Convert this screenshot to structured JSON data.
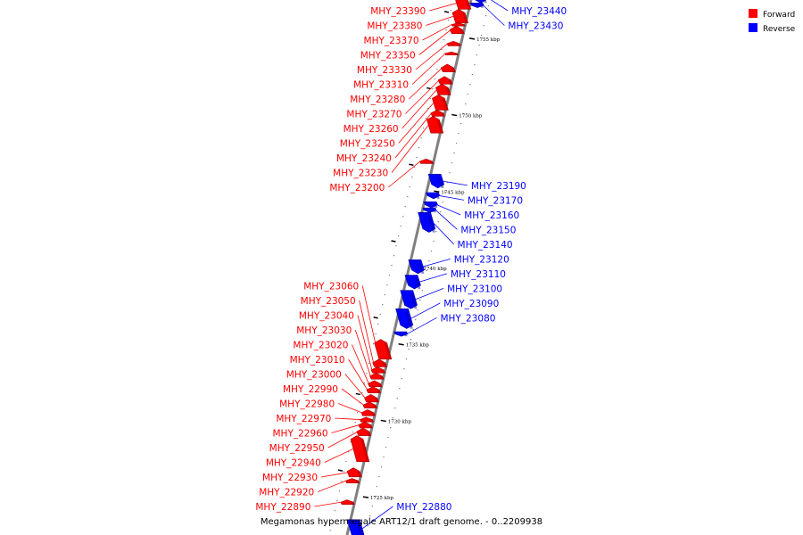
{
  "caption": "Megamonas hypermegale ART12/1 draft genome. - 0..2209938",
  "legend": [
    {
      "label": "Forward",
      "color": "#ff0000"
    },
    {
      "label": "Reverse",
      "color": "#0000ff"
    }
  ],
  "colors": {
    "forward": "#ff0000",
    "reverse": "#0000ff",
    "forward_dark": "#a00000",
    "reverse_dark": "#000099",
    "backbone": "#808080"
  },
  "scale": {
    "kbp_top": 1757.5,
    "kbp_bottom": 1722.5
  },
  "ticks": [
    {
      "kbp": 1755,
      "label": "1755 kbp"
    },
    {
      "kbp": 1750,
      "label": "1750 kbp"
    },
    {
      "kbp": 1745,
      "label": "1745 kbp"
    },
    {
      "kbp": 1740,
      "label": "1740 kbp"
    },
    {
      "kbp": 1735,
      "label": "1735 kbp"
    },
    {
      "kbp": 1730,
      "label": "1730 kbp"
    },
    {
      "kbp": 1725,
      "label": "1725 kbp"
    }
  ],
  "genes": [
    {
      "id": "MHY_23440",
      "strand": "reverse",
      "start": 1757.3,
      "end": 1758.2
    },
    {
      "id": "MHY_23430",
      "strand": "reverse",
      "start": 1757.0,
      "end": 1757.3
    },
    {
      "id": "MHY_23390",
      "strand": "forward",
      "start": 1756.9,
      "end": 1757.7
    },
    {
      "id": "MHY_23380",
      "strand": "forward",
      "start": 1756.0,
      "end": 1756.9
    },
    {
      "id": "MHY_23370",
      "strand": "forward",
      "start": 1755.8,
      "end": 1756.0
    },
    {
      "id": "MHY_23350",
      "strand": "forward",
      "start": 1755.3,
      "end": 1755.8
    },
    {
      "id": "MHY_23330",
      "strand": "forward",
      "start": 1754.5,
      "end": 1754.8
    },
    {
      "id": "MHY_23310",
      "strand": "forward",
      "start": 1753.9,
      "end": 1754.1
    },
    {
      "id": "MHY_23280",
      "strand": "forward",
      "start": 1752.8,
      "end": 1753.3
    },
    {
      "id": "MHY_23270",
      "strand": "forward",
      "start": 1752.0,
      "end": 1752.5
    },
    {
      "id": "MHY_23260",
      "strand": "forward",
      "start": 1751.3,
      "end": 1752.0
    },
    {
      "id": "MHY_23250",
      "strand": "forward",
      "start": 1750.3,
      "end": 1751.3
    },
    {
      "id": "MHY_23240",
      "strand": "forward",
      "start": 1749.9,
      "end": 1750.3
    },
    {
      "id": "MHY_23230",
      "strand": "forward",
      "start": 1748.8,
      "end": 1749.9
    },
    {
      "id": "MHY_23200",
      "strand": "forward",
      "start": 1746.8,
      "end": 1747.1
    },
    {
      "id": "MHY_23190",
      "strand": "reverse",
      "start": 1745.2,
      "end": 1746.1
    },
    {
      "id": "MHY_23170",
      "strand": "reverse",
      "start": 1744.5,
      "end": 1744.9
    },
    {
      "id": "MHY_23160",
      "strand": "reverse",
      "start": 1743.9,
      "end": 1744.3
    },
    {
      "id": "MHY_23150",
      "strand": "reverse",
      "start": 1743.6,
      "end": 1743.9
    },
    {
      "id": "MHY_23140",
      "strand": "reverse",
      "start": 1742.3,
      "end": 1743.6
    },
    {
      "id": "MHY_23120",
      "strand": "reverse",
      "start": 1739.6,
      "end": 1740.5
    },
    {
      "id": "MHY_23110",
      "strand": "reverse",
      "start": 1738.6,
      "end": 1739.5
    },
    {
      "id": "MHY_23100",
      "strand": "reverse",
      "start": 1737.3,
      "end": 1738.5
    },
    {
      "id": "MHY_23090",
      "strand": "reverse",
      "start": 1736.0,
      "end": 1737.3
    },
    {
      "id": "MHY_23080",
      "strand": "reverse",
      "start": 1735.5,
      "end": 1735.8
    },
    {
      "id": "MHY_23060",
      "strand": "forward",
      "start": 1734.0,
      "end": 1735.3
    },
    {
      "id": "MHY_23050",
      "strand": "forward",
      "start": 1733.5,
      "end": 1734.0
    },
    {
      "id": "MHY_23040",
      "strand": "forward",
      "start": 1733.1,
      "end": 1733.5
    },
    {
      "id": "MHY_23030",
      "strand": "forward",
      "start": 1732.7,
      "end": 1733.1
    },
    {
      "id": "MHY_23020",
      "strand": "forward",
      "start": 1732.2,
      "end": 1732.6
    },
    {
      "id": "MHY_23010",
      "strand": "forward",
      "start": 1731.8,
      "end": 1732.2
    },
    {
      "id": "MHY_23000",
      "strand": "forward",
      "start": 1731.2,
      "end": 1731.7
    },
    {
      "id": "MHY_22990",
      "strand": "forward",
      "start": 1730.8,
      "end": 1731.2
    },
    {
      "id": "MHY_22980",
      "strand": "forward",
      "start": 1730.3,
      "end": 1730.7
    },
    {
      "id": "MHY_22970",
      "strand": "forward",
      "start": 1729.9,
      "end": 1730.2
    },
    {
      "id": "MHY_22960",
      "strand": "forward",
      "start": 1729.5,
      "end": 1729.9
    },
    {
      "id": "MHY_22950",
      "strand": "forward",
      "start": 1729.0,
      "end": 1729.5
    },
    {
      "id": "MHY_22940",
      "strand": "forward",
      "start": 1727.3,
      "end": 1729.0
    },
    {
      "id": "MHY_22930",
      "strand": "forward",
      "start": 1726.3,
      "end": 1726.9
    },
    {
      "id": "MHY_22920",
      "strand": "forward",
      "start": 1725.9,
      "end": 1726.2
    },
    {
      "id": "MHY_22890",
      "strand": "forward",
      "start": 1724.5,
      "end": 1724.8
    },
    {
      "id": "MHY_22880",
      "strand": "reverse",
      "start": 1722.3,
      "end": 1723.5
    }
  ]
}
